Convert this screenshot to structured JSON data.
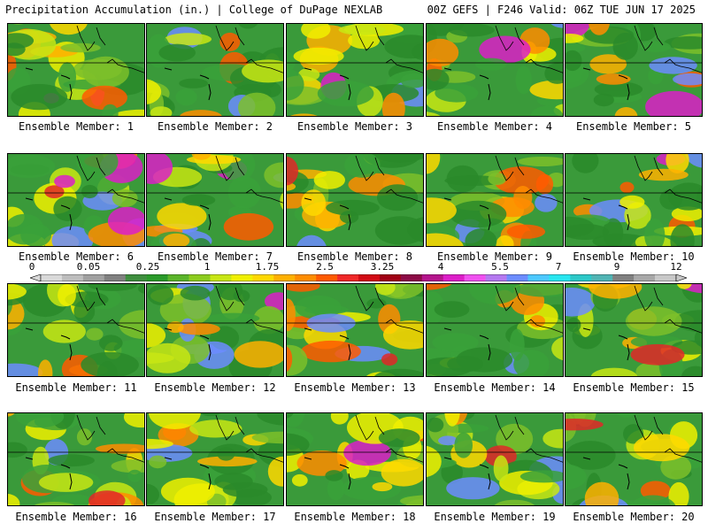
{
  "header": {
    "title": "Precipitation Accumulation (in.) | College of DuPage NEXLAB",
    "run_info": "00Z GEFS | F246 Valid: 06Z TUE JUN 17 2025"
  },
  "panels": [
    {
      "label": "Ensemble Member: 1"
    },
    {
      "label": "Ensemble Member: 2"
    },
    {
      "label": "Ensemble Member: 3"
    },
    {
      "label": "Ensemble Member: 4"
    },
    {
      "label": "Ensemble Member: 5"
    },
    {
      "label": "Ensemble Member: 6"
    },
    {
      "label": "Ensemble Member: 7"
    },
    {
      "label": "Ensemble Member: 8"
    },
    {
      "label": "Ensemble Member: 9"
    },
    {
      "label": "Ensemble Member: 10"
    },
    {
      "label": "Ensemble Member: 11"
    },
    {
      "label": "Ensemble Member: 12"
    },
    {
      "label": "Ensemble Member: 13"
    },
    {
      "label": "Ensemble Member: 14"
    },
    {
      "label": "Ensemble Member: 15"
    },
    {
      "label": "Ensemble Member: 16"
    },
    {
      "label": "Ensemble Member: 17"
    },
    {
      "label": "Ensemble Member: 18"
    },
    {
      "label": "Ensemble Member: 19"
    },
    {
      "label": "Ensemble Member: 20"
    }
  ],
  "colorbar": {
    "tick_labels": [
      "0",
      "0.05",
      "0.25",
      "1",
      "1.75",
      "2.5",
      "3.25",
      "4",
      "5.5",
      "7",
      "9",
      "12"
    ],
    "colors": [
      "#d9d9d9",
      "#bdbdbd",
      "#a0a0a0",
      "#808080",
      "#3e8e3e",
      "#2a9a2a",
      "#5ab42a",
      "#8ccc1e",
      "#c8e614",
      "#f0f000",
      "#ffd800",
      "#ffb000",
      "#ff8c00",
      "#ff5a00",
      "#f02828",
      "#d20a14",
      "#a00014",
      "#8c0a46",
      "#b4148c",
      "#dc1ec8",
      "#f050f0",
      "#b478f0",
      "#6c8cff",
      "#4cc8ff",
      "#28e6f0",
      "#2cc8c8",
      "#50b4b4",
      "#808080",
      "#a8a8a8",
      "#c8c8c8"
    ]
  }
}
